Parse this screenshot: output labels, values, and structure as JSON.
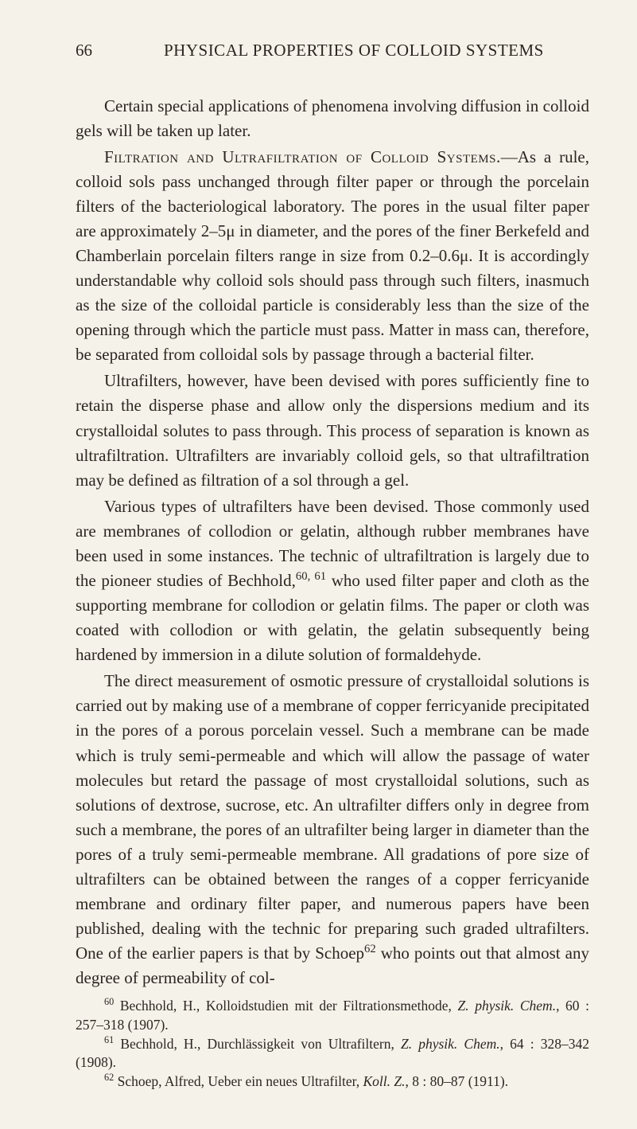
{
  "header": {
    "page_number": "66",
    "title": "PHYSICAL PROPERTIES OF COLLOID SYSTEMS"
  },
  "paragraphs": {
    "p1": "Certain special applications of phenomena involving diffusion in colloid gels will be taken up later.",
    "p2_lead": "Filtration and Ultrafiltration of Colloid Systems.",
    "p2_rest": "—As a rule, colloid sols pass unchanged through filter paper or through the porcelain filters of the bacteriological laboratory. The pores in the usual filter paper are approximately 2–5μ in diameter, and the pores of the finer Berkefeld and Chamberlain porcelain filters range in size from 0.2–0.6μ. It is accordingly understandable why colloid sols should pass through such filters, inasmuch as the size of the colloidal particle is considerably less than the size of the opening through which the particle must pass. Matter in mass can, therefore, be separated from colloidal sols by passage through a bacterial filter.",
    "p3": "Ultrafilters, however, have been devised with pores sufficiently fine to retain the disperse phase and allow only the dispersions medium and its crystalloidal solutes to pass through. This process of separation is known as ultrafiltration. Ultrafilters are invariably colloid gels, so that ultrafiltration may be defined as filtration of a sol through a gel.",
    "p4_a": "Various types of ultrafilters have been devised. Those commonly used are membranes of collodion or gelatin, although rubber membranes have been used in some instances. The technic of ultrafiltration is largely due to the pioneer studies of Bechhold,",
    "p4_sup": "60, 61",
    "p4_b": " who used filter paper and cloth as the supporting membrane for collodion or gelatin films. The paper or cloth was coated with collodion or with gelatin, the gelatin subsequently being hardened by immersion in a dilute solution of formaldehyde.",
    "p5_a": "The direct measurement of osmotic pressure of crystalloidal solutions is carried out by making use of a membrane of copper ferricyanide precipitated in the pores of a porous porcelain vessel. Such a membrane can be made which is truly semi-permeable and which will allow the passage of water molecules but retard the passage of most crystalloidal solutions, such as solutions of dextrose, sucrose, etc. An ultrafilter differs only in degree from such a membrane, the pores of an ultrafilter being larger in diameter than the pores of a truly semi-permeable membrane. All gradations of pore size of ultrafilters can be obtained between the ranges of a copper ferricyanide membrane and ordinary filter paper, and numerous papers have been published, dealing with the technic for preparing such graded ultrafilters. One of the earlier papers is that by Schoep",
    "p5_sup": "62",
    "p5_b": " who points out that almost any degree of permeability of col-"
  },
  "footnotes": {
    "f60_sup": "60",
    "f60_a": " Bechhold, H., Kolloidstudien mit der Filtrationsmethode, ",
    "f60_i": "Z. physik. Chem.",
    "f60_b": ", 60 : 257–318 (1907).",
    "f61_sup": "61",
    "f61_a": " Bechhold, H., Durchlässigkeit von Ultrafiltern, ",
    "f61_i": "Z. physik. Chem.",
    "f61_b": ", 64 : 328–342 (1908).",
    "f62_sup": "62",
    "f62_a": " Schoep, Alfred, Ueber ein neues Ultrafilter, ",
    "f62_i": "Koll. Z.",
    "f62_b": ", 8 : 80–87 (1911)."
  },
  "style": {
    "background_color": "#f5f2ea",
    "text_color": "#2b2620",
    "body_fontsize": 21,
    "footnote_fontsize": 17.5,
    "font_family": "Times New Roman"
  }
}
